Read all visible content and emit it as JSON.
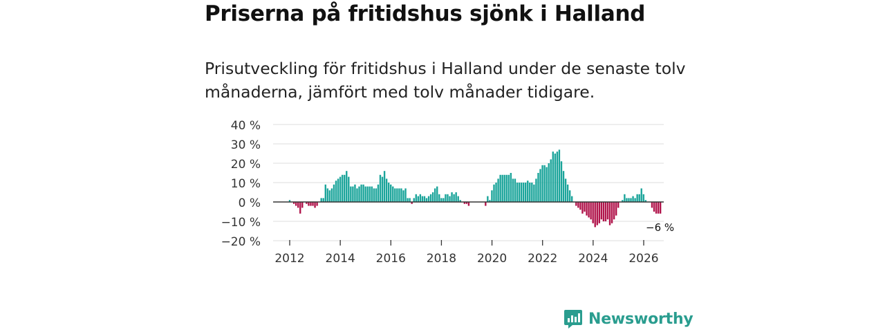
{
  "header": {
    "title": "Priserna på fritidshus sjönk i Halland",
    "subtitle": "Prisutveckling för fritidshus i Halland under de senaste tolv månaderna, jämfört med tolv månader tidigare."
  },
  "colors": {
    "positive": "#1aa49a",
    "negative": "#b0134a",
    "grid": "#dddddd",
    "axis": "#333333",
    "brand": "#2a9d8f"
  },
  "brand": {
    "name": "Newsworthy"
  },
  "chart_data": {
    "type": "bar",
    "title": "Priserna på fritidshus sjönk i Halland",
    "xlabel": "",
    "ylabel": "",
    "ylim": [
      -20,
      40
    ],
    "yticks": [
      40,
      30,
      20,
      10,
      0,
      -10,
      -20
    ],
    "ytick_labels": [
      "40 %",
      "30 %",
      "20 %",
      "10 %",
      "0 %",
      "−10 %",
      "−20 %"
    ],
    "xticks": [
      2012,
      2014,
      2016,
      2018,
      2020,
      2022,
      2024,
      2026
    ],
    "xtick_labels": [
      "2012",
      "2014",
      "2016",
      "2018",
      "2020",
      "2022",
      "2024",
      "2026"
    ],
    "x_start": 2011.5,
    "x_step": 0.0833,
    "values": [
      0,
      0,
      0,
      0,
      0,
      0,
      1,
      0,
      -1,
      -2,
      -3,
      -6,
      -3,
      0,
      -1,
      -2,
      -2,
      -2,
      -3,
      -2,
      0,
      2,
      2,
      9,
      7,
      6,
      7,
      9,
      11,
      12,
      13,
      14,
      14,
      16,
      13,
      8,
      8,
      9,
      7,
      8,
      9,
      9,
      8,
      8,
      8,
      8,
      7,
      7,
      9,
      14,
      13,
      16,
      12,
      10,
      9,
      8,
      7,
      7,
      7,
      7,
      6,
      7,
      2,
      2,
      -1,
      2,
      4,
      3,
      4,
      3,
      3,
      2,
      3,
      4,
      5,
      7,
      8,
      4,
      2,
      2,
      4,
      4,
      3,
      5,
      4,
      5,
      3,
      1,
      0,
      -1,
      -1,
      -2,
      0,
      0,
      0,
      0,
      0,
      0,
      0,
      -2,
      3,
      1,
      6,
      9,
      10,
      12,
      14,
      14,
      14,
      14,
      14,
      15,
      12,
      12,
      10,
      10,
      10,
      10,
      10,
      11,
      10,
      10,
      9,
      12,
      15,
      17,
      19,
      19,
      18,
      20,
      22,
      26,
      25,
      26,
      27,
      21,
      16,
      12,
      9,
      6,
      3,
      0,
      -2,
      -3,
      -4,
      -6,
      -5,
      -7,
      -8,
      -9,
      -11,
      -13,
      -12,
      -11,
      -9,
      -10,
      -10,
      -9,
      -12,
      -11,
      -9,
      -7,
      -3,
      0,
      1,
      4,
      2,
      2,
      2,
      3,
      2,
      4,
      4,
      7,
      4,
      1,
      0,
      0,
      -3,
      -5,
      -6,
      -6,
      -6
    ],
    "annotations": [
      {
        "label": "−6 %",
        "target": "last-value"
      }
    ]
  }
}
